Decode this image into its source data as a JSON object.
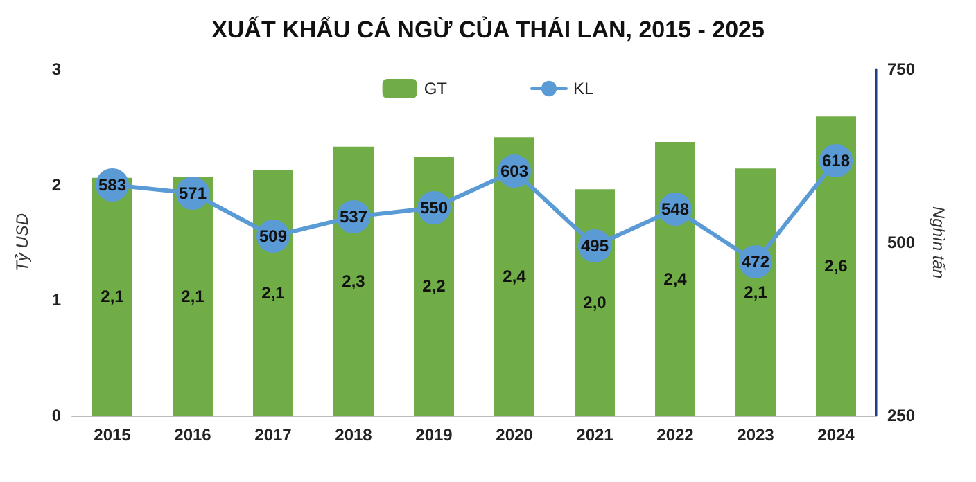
{
  "chart_data": {
    "type": "bar",
    "title": "XUẤT KHẨU CÁ NGỪ CỦA THÁI LAN, 2015 - 2025",
    "ylabel": "Tỷ USD",
    "y2label": "Nghìn tấn",
    "categories": [
      "2015",
      "2016",
      "2017",
      "2018",
      "2019",
      "2020",
      "2021",
      "2022",
      "2023",
      "2024"
    ],
    "series": [
      {
        "name": "GT",
        "color": "#70ad47",
        "values": [
          2.06,
          2.07,
          2.13,
          2.33,
          2.24,
          2.41,
          1.96,
          2.37,
          2.14,
          2.59
        ],
        "value_labels": [
          "2,1",
          "2,1",
          "2,1",
          "2,3",
          "2,2",
          "2,4",
          "2,0",
          "2,4",
          "2,1",
          "2,6"
        ]
      },
      {
        "name": "KL",
        "type": "line",
        "axis": "y2",
        "color": "#5b9bd5",
        "marker": "circle",
        "values": [
          583,
          571,
          509,
          537,
          550,
          603,
          495,
          548,
          472,
          618
        ],
        "value_labels": [
          "583",
          "571",
          "509",
          "537",
          "550",
          "603",
          "495",
          "548",
          "472",
          "618"
        ]
      }
    ],
    "ylim": [
      0,
      3
    ],
    "yticks": [
      0,
      1,
      2,
      3
    ],
    "y2lim": [
      250,
      750
    ],
    "y2ticks": [
      250,
      500,
      750
    ],
    "grid": false,
    "legend": "top"
  }
}
